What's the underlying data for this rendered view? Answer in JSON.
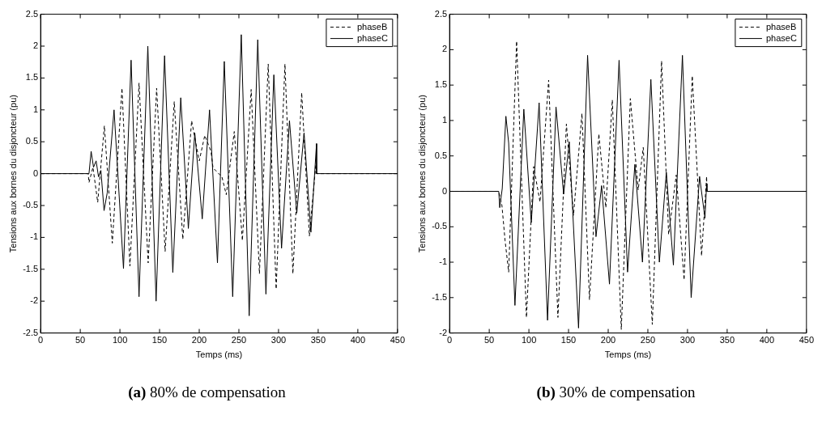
{
  "chart_data": [
    {
      "type": "line",
      "xlabel": "Temps (ms)",
      "ylabel": "Tensions aux bornes du disjoncteur (pu)",
      "xlim": [
        0,
        450
      ],
      "xticks": [
        0,
        50,
        100,
        150,
        200,
        250,
        300,
        350,
        400,
        450
      ],
      "ylim": [
        -2.5,
        2.5
      ],
      "yticks": [
        -2.5,
        -2,
        -1.5,
        -1,
        -0.5,
        0,
        0.5,
        1,
        1.5,
        2,
        2.5
      ],
      "grid": false,
      "legend": "top right",
      "marker": "none",
      "annotations": [
        "(a) 80% de compensation"
      ],
      "series": [
        {
          "name": "phaseB",
          "color": "#000000",
          "line_style": "dashed",
          "x": [
            0,
            60,
            61,
            66,
            72,
            80.4,
            90.4,
            102.6,
            112.6,
            124.1,
            135.6,
            146.3,
            157,
            168.5,
            179.3,
            190.4,
            200,
            207,
            214.8,
            217.4,
            228.6,
            234.1,
            244.2,
            254.4,
            265.5,
            275.9,
            287,
            297,
            308.1,
            318.1,
            329.2,
            338.9,
            347,
            348,
            450
          ],
          "values": [
            0,
            0,
            -0.14,
            0.1,
            -0.45,
            0.75,
            -1.09,
            1.34,
            -1.45,
            1.42,
            -1.4,
            1.34,
            -1.22,
            1.13,
            -1.03,
            0.83,
            0.2,
            0.6,
            0.35,
            0.09,
            -0.05,
            -0.33,
            0.66,
            -1.05,
            1.32,
            -1.57,
            1.72,
            -1.81,
            1.72,
            -1.57,
            1.27,
            -0.98,
            0.14,
            0,
            0
          ]
        },
        {
          "name": "phaseC",
          "color": "#000000",
          "line_style": "solid",
          "x": [
            0,
            61,
            63.7,
            66.7,
            70,
            73,
            76,
            80,
            84,
            92.6,
            104.5,
            114.1,
            124.1,
            135.2,
            145.6,
            156.3,
            166.7,
            176.7,
            186.3,
            194.4,
            203.8,
            213,
            223,
            231.6,
            242.2,
            253,
            263,
            273.8,
            284.1,
            294.1,
            303.8,
            313.8,
            323,
            332.2,
            340.8,
            347.9,
            348,
            450
          ],
          "values": [
            0,
            0,
            0.35,
            0.1,
            0.2,
            -0.05,
            0.05,
            -0.58,
            -0.3,
            1.0,
            -1.49,
            1.78,
            -1.93,
            2.0,
            -2.0,
            1.85,
            -1.55,
            1.19,
            -0.86,
            0.64,
            -0.71,
            1.0,
            -1.4,
            1.76,
            -1.93,
            2.18,
            -2.23,
            2.1,
            -1.89,
            1.55,
            -1.17,
            0.83,
            -0.62,
            0.64,
            -0.92,
            0.47,
            0,
            0
          ]
        }
      ]
    },
    {
      "type": "line",
      "xlabel": "Temps (ms)",
      "ylabel": "Tensions aux bornes du disjoncteur (pu)",
      "xlim": [
        0,
        450
      ],
      "xticks": [
        0,
        50,
        100,
        150,
        200,
        250,
        300,
        350,
        400,
        450
      ],
      "ylim": [
        -2,
        2.5
      ],
      "yticks": [
        -2,
        -1.5,
        -1,
        -0.5,
        0,
        0.5,
        1,
        1.5,
        2,
        2.5
      ],
      "grid": false,
      "legend": "top right",
      "marker": "none",
      "annotations": [
        "(b) 30% de compensation"
      ],
      "series": [
        {
          "name": "phaseB",
          "color": "#000000",
          "line_style": "dashed",
          "x": [
            0,
            62,
            66,
            70,
            74.5,
            84.5,
            96.9,
            106,
            114,
            124.9,
            136.6,
            147.3,
            156.2,
            166.9,
            176.4,
            188.2,
            197,
            205.2,
            216.5,
            227.9,
            237.8,
            244.2,
            255.6,
            267.3,
            276.2,
            285.8,
            295.7,
            306,
            317.7,
            324.1,
            324.5
          ],
          "values": [
            0,
            0,
            -0.2,
            -0.7,
            -1.14,
            2.12,
            -1.78,
            0.35,
            -0.15,
            1.57,
            -1.78,
            0.95,
            -0.34,
            1.1,
            -1.53,
            0.81,
            -0.23,
            1.29,
            -1.95,
            1.31,
            0.02,
            0.62,
            -1.88,
            1.84,
            -0.61,
            0.23,
            -1.25,
            1.63,
            -0.91,
            0.21,
            0
          ]
        },
        {
          "name": "phaseC",
          "color": "#000000",
          "line_style": "solid",
          "x": [
            0,
            62,
            63.2,
            66.4,
            71,
            74.5,
            82.4,
            93.6,
            103,
            112.9,
            123.5,
            134.2,
            143.8,
            150.9,
            162.6,
            174,
            184.6,
            191.7,
            201.6,
            213.7,
            224.4,
            233.6,
            243.2,
            253.8,
            264.5,
            273.3,
            282.2,
            293.6,
            304.6,
            315.2,
            322,
            324.1,
            324.5,
            450
          ],
          "values": [
            0,
            0,
            -0.23,
            0.04,
            1.06,
            0.68,
            -1.61,
            1.16,
            -0.44,
            1.25,
            -1.82,
            1.19,
            -0.04,
            0.7,
            -1.93,
            1.92,
            -0.64,
            0.08,
            -1.31,
            1.85,
            -1.14,
            0.38,
            -1.0,
            1.58,
            -1.0,
            0.27,
            -1.04,
            1.92,
            -1.5,
            0.21,
            -0.38,
            0.11,
            0,
            0
          ]
        }
      ]
    }
  ]
}
